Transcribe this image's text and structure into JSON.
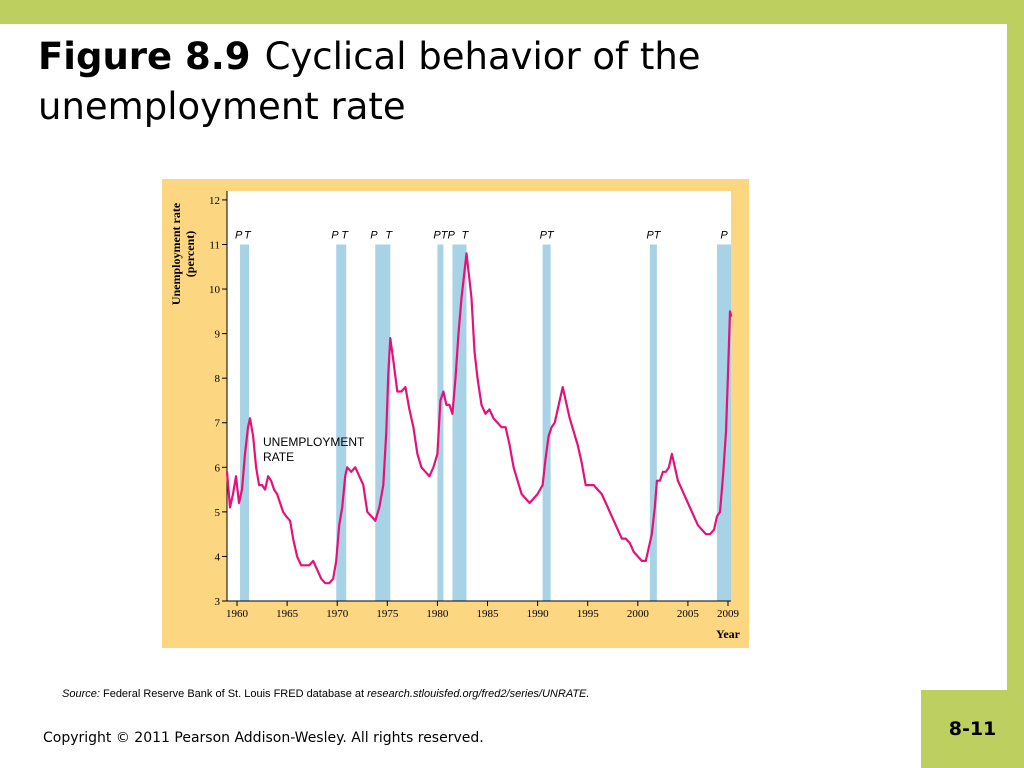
{
  "slide": {
    "figure_number": "Figure 8.9",
    "title_text": "Cyclical behavior of the unemployment rate",
    "source_label": "Source:",
    "source_text": " Federal Reserve Bank of St. Louis FRED database at ",
    "source_url": "research.stlouisfed.org/fred2/series/UNRATE.",
    "copyright": "Copyright © 2011 Pearson Addison-Wesley. All rights reserved.",
    "page_number": "8-11",
    "colors": {
      "accent_bar": "#bccf5f",
      "chart_background": "#fcd681",
      "plot_background": "#ffffff",
      "recession_band": "#a8d2e6",
      "series_line": "#e4117a"
    }
  },
  "chart_data": {
    "type": "line",
    "xlabel": "Year",
    "ylabel_lines": [
      "Unemployment rate",
      "(percent)"
    ],
    "xlim": [
      1959,
      2009.3
    ],
    "ylim": [
      3,
      12.2
    ],
    "xticks": [
      1960,
      1965,
      1970,
      1975,
      1980,
      1985,
      1990,
      1995,
      2000,
      2005,
      2009
    ],
    "yticks": [
      3,
      4,
      5,
      6,
      7,
      8,
      9,
      10,
      11,
      12
    ],
    "grid": false,
    "recessions": [
      {
        "peak_label": "P",
        "trough_label": "T",
        "start": 1960.3,
        "end": 1961.2
      },
      {
        "peak_label": "P",
        "trough_label": "T",
        "start": 1969.9,
        "end": 1970.9
      },
      {
        "peak_label": "P",
        "trough_label": "T",
        "start": 1973.8,
        "end": 1975.3
      },
      {
        "peak_label": "PT",
        "start": 1980.0,
        "end": 1980.6
      },
      {
        "peak_label": "P",
        "trough_label": "T",
        "start": 1981.5,
        "end": 1982.9
      },
      {
        "peak_label": "PT",
        "start": 1990.5,
        "end": 1991.3
      },
      {
        "peak_label": "PT",
        "start": 2001.2,
        "end": 2001.9
      },
      {
        "peak_label": "P",
        "start": 2007.9,
        "end": 2009.3
      }
    ],
    "series": [
      {
        "name": "UNEMPLOYMENT RATE",
        "x": [
          1959,
          1959.3,
          1959.6,
          1959.9,
          1960.2,
          1960.5,
          1960.8,
          1961.1,
          1961.3,
          1961.6,
          1961.9,
          1962.2,
          1962.5,
          1962.8,
          1963.1,
          1963.4,
          1963.7,
          1964.0,
          1964.3,
          1964.6,
          1964.9,
          1965.3,
          1965.6,
          1966.0,
          1966.4,
          1966.8,
          1967.2,
          1967.6,
          1968.0,
          1968.4,
          1968.8,
          1969.2,
          1969.6,
          1969.9,
          1970.2,
          1970.5,
          1970.8,
          1971.0,
          1971.4,
          1971.8,
          1972.2,
          1972.6,
          1973.0,
          1973.4,
          1973.8,
          1974.2,
          1974.6,
          1974.9,
          1975.1,
          1975.3,
          1975.6,
          1976.0,
          1976.4,
          1976.8,
          1977.2,
          1977.6,
          1978.0,
          1978.4,
          1978.8,
          1979.2,
          1979.6,
          1980.0,
          1980.3,
          1980.6,
          1980.9,
          1981.2,
          1981.5,
          1981.8,
          1982.1,
          1982.4,
          1982.7,
          1982.9,
          1983.1,
          1983.4,
          1983.7,
          1984.0,
          1984.4,
          1984.8,
          1985.2,
          1985.6,
          1986.0,
          1986.4,
          1986.8,
          1987.2,
          1987.6,
          1988.0,
          1988.4,
          1988.8,
          1989.2,
          1989.6,
          1990.0,
          1990.5,
          1990.8,
          1991.1,
          1991.4,
          1991.7,
          1992.0,
          1992.3,
          1992.5,
          1992.8,
          1993.2,
          1993.6,
          1994.0,
          1994.4,
          1994.8,
          1995.2,
          1995.6,
          1996.0,
          1996.4,
          1996.8,
          1997.2,
          1997.6,
          1998.0,
          1998.4,
          1998.8,
          1999.2,
          1999.6,
          2000.0,
          2000.4,
          2000.8,
          2001.1,
          2001.4,
          2001.7,
          2001.9,
          2002.2,
          2002.5,
          2002.8,
          2003.1,
          2003.4,
          2003.7,
          2004.0,
          2004.4,
          2004.8,
          2005.2,
          2005.6,
          2006.0,
          2006.4,
          2006.8,
          2007.2,
          2007.6,
          2007.9,
          2008.2,
          2008.5,
          2008.8,
          2009.0,
          2009.2,
          2009.3
        ],
        "values": [
          5.9,
          5.1,
          5.4,
          5.8,
          5.2,
          5.5,
          6.3,
          6.9,
          7.1,
          6.7,
          6.0,
          5.6,
          5.6,
          5.5,
          5.8,
          5.7,
          5.5,
          5.4,
          5.2,
          5.0,
          4.9,
          4.8,
          4.4,
          4.0,
          3.8,
          3.8,
          3.8,
          3.9,
          3.7,
          3.5,
          3.4,
          3.4,
          3.5,
          3.9,
          4.7,
          5.1,
          5.8,
          6.0,
          5.9,
          6.0,
          5.8,
          5.6,
          5.0,
          4.9,
          4.8,
          5.1,
          5.6,
          6.8,
          8.1,
          8.9,
          8.4,
          7.7,
          7.7,
          7.8,
          7.3,
          6.9,
          6.3,
          6.0,
          5.9,
          5.8,
          6.0,
          6.3,
          7.5,
          7.7,
          7.4,
          7.4,
          7.2,
          8.0,
          9.0,
          9.8,
          10.4,
          10.8,
          10.4,
          9.8,
          8.6,
          8.0,
          7.4,
          7.2,
          7.3,
          7.1,
          7.0,
          6.9,
          6.9,
          6.5,
          6.0,
          5.7,
          5.4,
          5.3,
          5.2,
          5.3,
          5.4,
          5.6,
          6.2,
          6.7,
          6.9,
          7.0,
          7.3,
          7.6,
          7.8,
          7.5,
          7.1,
          6.8,
          6.5,
          6.1,
          5.6,
          5.6,
          5.6,
          5.5,
          5.4,
          5.2,
          5.0,
          4.8,
          4.6,
          4.4,
          4.4,
          4.3,
          4.1,
          4.0,
          3.9,
          3.9,
          4.2,
          4.5,
          5.1,
          5.7,
          5.7,
          5.9,
          5.9,
          6.0,
          6.3,
          6.0,
          5.7,
          5.5,
          5.3,
          5.1,
          4.9,
          4.7,
          4.6,
          4.5,
          4.5,
          4.6,
          4.9,
          5.0,
          5.8,
          6.8,
          8.1,
          9.5,
          9.4
        ]
      }
    ],
    "annotation": [
      "UNEMPLOYMENT",
      "RATE"
    ]
  }
}
